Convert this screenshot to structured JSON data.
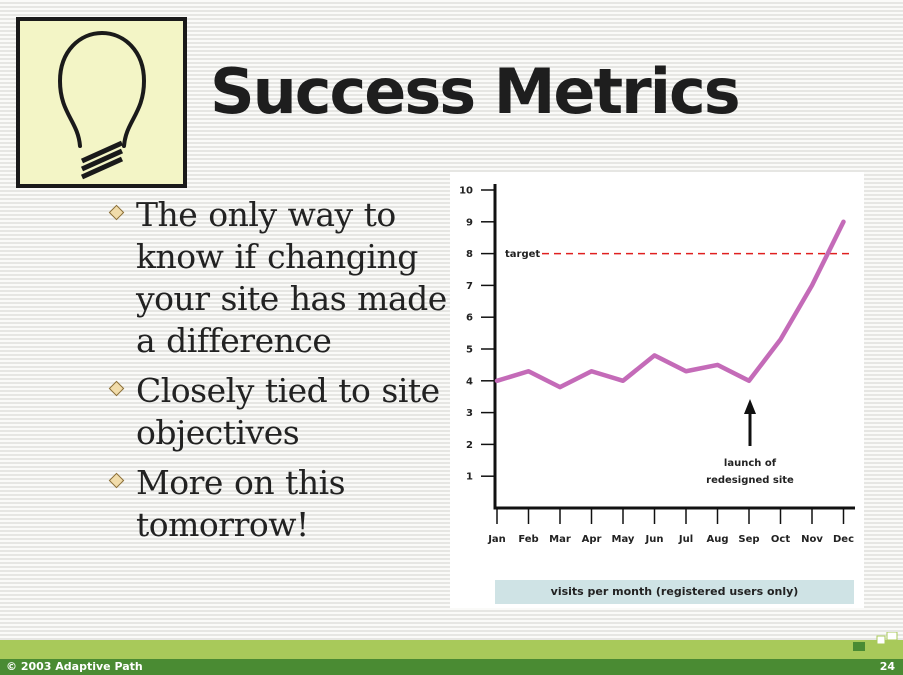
{
  "slide": {
    "title": "Success Metrics",
    "logo_icon": "lightbulb-icon",
    "bullets": [
      "The only way to know if changing your site has made a difference",
      "Closely tied to site objectives",
      "More on this tomorrow!"
    ]
  },
  "chart_data": {
    "type": "line",
    "categories": [
      "Jan",
      "Feb",
      "Mar",
      "Apr",
      "May",
      "Jun",
      "Jul",
      "Aug",
      "Sep",
      "Oct",
      "Nov",
      "Dec"
    ],
    "series": [
      {
        "values": [
          4.0,
          4.3,
          3.8,
          4.3,
          4.0,
          4.8,
          4.3,
          4.5,
          4.0,
          5.3,
          7.0,
          9.0
        ],
        "color": "#c46bb8"
      }
    ],
    "ylim": [
      0,
      10
    ],
    "yticks": [
      1,
      2,
      3,
      4,
      5,
      6,
      7,
      8,
      9,
      10
    ],
    "target": {
      "label": "target",
      "value": 8,
      "color": "#e02020"
    },
    "annotation": {
      "lines": [
        "launch of",
        "redesigned site"
      ],
      "at_category": "Sep"
    },
    "xlabel": "visits per month (registered users only)",
    "grid": false
  },
  "footer": {
    "copyright": "© 2003 Adaptive Path",
    "page_number": "24"
  },
  "colors": {
    "accent_green": "#a8c95a",
    "footer_green": "#4a8b33",
    "logo_background": "#f3f5c6",
    "caption_background": "#cfe3e5"
  }
}
